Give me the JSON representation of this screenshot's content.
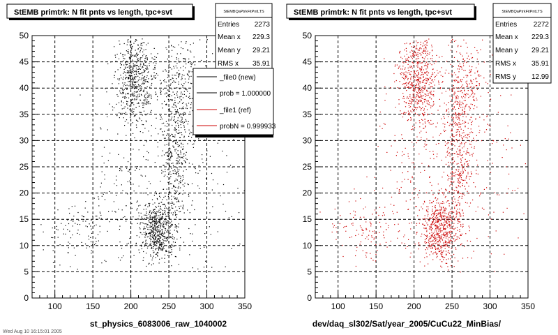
{
  "colors": {
    "background": "#ffffff",
    "frame": "#000000",
    "grid": "#000000",
    "new_series": "#000000",
    "ref_series": "#cc0000",
    "shadow": "#000000"
  },
  "left_panel": {
    "title": "StEMB primtrk: N fit pnts vs length, tpc+svt",
    "xlabel": "st_physics_6083006_raw_1040002",
    "stats": {
      "name": "StEMBQaPtrkFitPntLTS",
      "rows": [
        {
          "label": "Entries",
          "value": "2273"
        },
        {
          "label": "Mean x",
          "value": "229.3"
        },
        {
          "label": "Mean y",
          "value": "29.21"
        },
        {
          "label": "RMS x",
          "value": "35.91"
        }
      ]
    },
    "legend": [
      {
        "label": "_file0 (new)",
        "color": "#000000"
      },
      {
        "label": "prob = 1.000000",
        "color": "#000000"
      },
      {
        "label": "_file1 (ref)",
        "color": "#cc0000"
      },
      {
        "label": "probN = 0.999933",
        "color": "#cc0000"
      }
    ]
  },
  "right_panel": {
    "title": "StEMB primtrk: N fit pnts vs length, tpc+svt",
    "xlabel": "dev/daq_sl302/Sat/year_2005/CuCu22_MinBias/",
    "stats": {
      "name": "StEMBQaPtrkFitPntLTS",
      "rows": [
        {
          "label": "Entries",
          "value": "2272"
        },
        {
          "label": "Mean x",
          "value": "229.3"
        },
        {
          "label": "Mean y",
          "value": "29.21"
        },
        {
          "label": "RMS x",
          "value": "35.91"
        },
        {
          "label": "RMS y",
          "value": "12.99"
        }
      ]
    }
  },
  "footer_text": "Wed Aug 10 16:15:01 2005",
  "chart_data": [
    {
      "type": "scatter",
      "title": "StEMB primtrk: N fit pnts vs length, tpc+svt",
      "xlabel": "st_physics_6083006_raw_1040002",
      "ylabel": "",
      "xlim": [
        70,
        350
      ],
      "ylim": [
        0,
        50
      ],
      "xticks": [
        100,
        150,
        200,
        250,
        300,
        350
      ],
      "yticks": [
        0,
        5,
        10,
        15,
        20,
        25,
        30,
        35,
        40,
        45,
        50
      ],
      "grid": true,
      "entries": 2273,
      "legend_position": "top-right",
      "series": [
        {
          "name": "_file0 (new)",
          "clusters": [
            {
              "x": 205,
              "y": 42,
              "sx": 13,
              "sy": 4.5,
              "n": 600
            },
            {
              "x": 233,
              "y": 13,
              "sx": 11,
              "sy": 3.0,
              "n": 550
            },
            {
              "x": 258,
              "y": 30,
              "sx": 9,
              "sy": 11,
              "n": 520
            },
            {
              "x": 275,
              "y": 40,
              "sx": 11,
              "sy": 6,
              "n": 150
            },
            {
              "x": 140,
              "y": 13,
              "sx": 28,
              "sy": 3.5,
              "n": 130
            },
            {
              "x": 215,
              "y": 27,
              "sx": 32,
              "sy": 11,
              "n": 240
            },
            {
              "x": 300,
              "y": 22,
              "sx": 25,
              "sy": 10,
              "n": 83
            }
          ]
        }
      ]
    },
    {
      "type": "scatter",
      "title": "StEMB primtrk: N fit pnts vs length, tpc+svt",
      "xlabel": "dev/daq_sl302/Sat/year_2005/CuCu22_MinBias/",
      "ylabel": "",
      "xlim": [
        70,
        350
      ],
      "ylim": [
        0,
        50
      ],
      "xticks": [
        100,
        150,
        200,
        250,
        300,
        350
      ],
      "yticks": [
        0,
        5,
        10,
        15,
        20,
        25,
        30,
        35,
        40,
        45,
        50
      ],
      "grid": true,
      "entries": 2272,
      "series": [
        {
          "name": "_file1 (ref)",
          "clusters": [
            {
              "x": 205,
              "y": 42,
              "sx": 13,
              "sy": 4.5,
              "n": 600
            },
            {
              "x": 233,
              "y": 13,
              "sx": 11,
              "sy": 3.0,
              "n": 550
            },
            {
              "x": 258,
              "y": 30,
              "sx": 9,
              "sy": 11,
              "n": 520
            },
            {
              "x": 275,
              "y": 40,
              "sx": 11,
              "sy": 6,
              "n": 150
            },
            {
              "x": 140,
              "y": 13,
              "sx": 28,
              "sy": 3.5,
              "n": 130
            },
            {
              "x": 215,
              "y": 27,
              "sx": 32,
              "sy": 11,
              "n": 240
            },
            {
              "x": 300,
              "y": 22,
              "sx": 25,
              "sy": 10,
              "n": 82
            }
          ]
        }
      ]
    }
  ]
}
